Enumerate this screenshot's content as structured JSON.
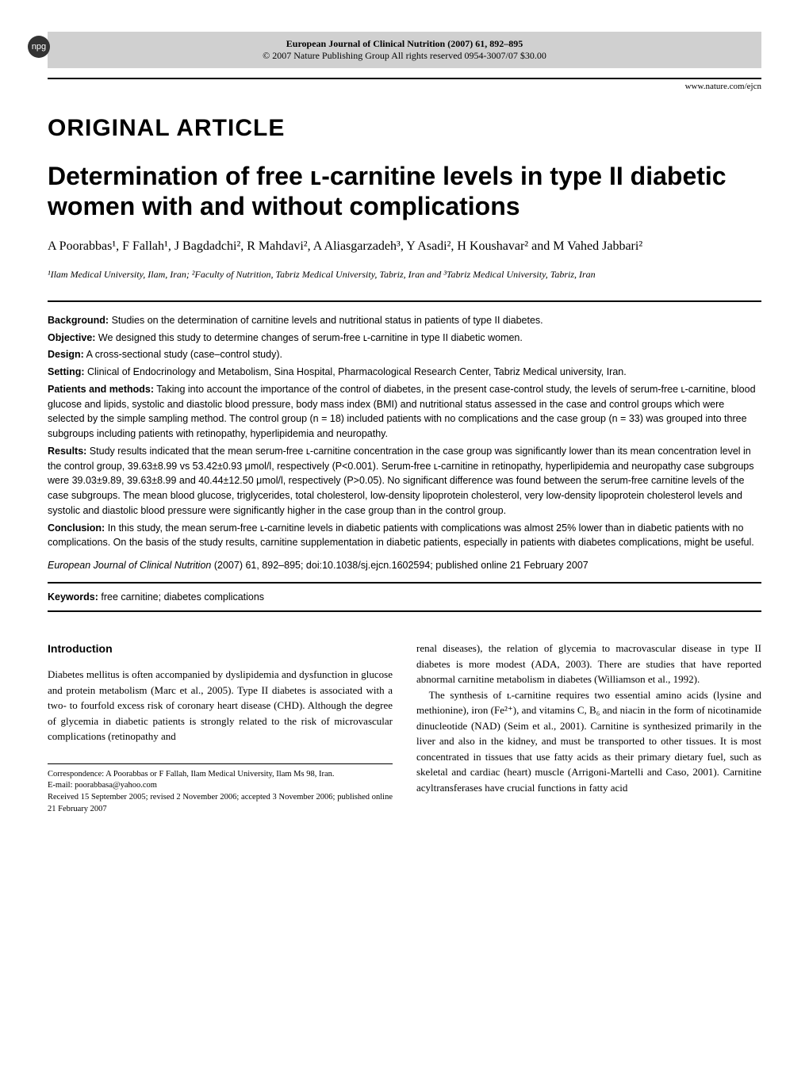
{
  "npg_label": "npg",
  "header": {
    "journal_line": "European Journal of Clinical Nutrition (2007) 61, 892–895",
    "copyright_line": "© 2007 Nature Publishing Group   All rights reserved   0954-3007/07   $30.00",
    "url": "www.nature.com/ejcn"
  },
  "article_type": "ORIGINAL ARTICLE",
  "title": "Determination of free ʟ-carnitine levels in type II diabetic women with and without complications",
  "authors": "A Poorabbas¹, F Fallah¹, J Bagdadchi², R Mahdavi², A Aliasgarzadeh³, Y Asadi², H Koushavar² and M Vahed Jabbari²",
  "affiliations": "¹Ilam Medical University, Ilam, Iran; ²Faculty of Nutrition, Tabriz Medical University, Tabriz, Iran and ³Tabriz Medical University, Tabriz, Iran",
  "abstract": {
    "background": {
      "label": "Background:",
      "text": " Studies on the determination of carnitine levels and nutritional status in patients of type II diabetes."
    },
    "objective": {
      "label": "Objective:",
      "text": " We designed this study to determine changes of serum-free ʟ-carnitine in type II diabetic women."
    },
    "design": {
      "label": "Design:",
      "text": " A cross-sectional study (case–control study)."
    },
    "setting": {
      "label": "Setting:",
      "text": " Clinical of Endocrinology and Metabolism, Sina Hospital, Pharmacological Research Center, Tabriz Medical university, Iran."
    },
    "patients": {
      "label": "Patients and methods:",
      "text": " Taking into account the importance of the control of diabetes, in the present case-control study, the levels of serum-free ʟ-carnitine, blood glucose and lipids, systolic and diastolic blood pressure, body mass index (BMI) and nutritional status assessed in the case and control groups which were selected by the simple sampling method. The control group (n = 18) included patients with no complications and the case group (n = 33) was grouped into three subgroups including patients with retinopathy, hyperlipidemia and neuropathy."
    },
    "results": {
      "label": "Results:",
      "text": " Study results indicated that the mean serum-free ʟ-carnitine concentration in the case group was significantly lower than its mean concentration level in the control group, 39.63±8.99 vs 53.42±0.93 μmol/l, respectively (P<0.001). Serum-free ʟ-carnitine in retinopathy, hyperlipidemia and neuropathy case subgroups were 39.03±9.89, 39.63±8.99 and 40.44±12.50 μmol/l, respectively (P>0.05). No significant difference was found between the serum-free carnitine levels of the case subgroups. The mean blood glucose, triglycerides, total cholesterol, low-density lipoprotein cholesterol, very low-density lipoprotein cholesterol levels and systolic and diastolic blood pressure were significantly higher in the case group than in the control group."
    },
    "conclusion": {
      "label": "Conclusion:",
      "text": " In this study, the mean serum-free ʟ-carnitine levels in diabetic patients with complications was almost 25% lower than in diabetic patients with no complications. On the basis of the study results, carnitine supplementation in diabetic patients, especially in patients with diabetes complications, might be useful."
    }
  },
  "citation": {
    "journal": "European Journal of Clinical Nutrition",
    "rest": " (2007) 61, 892–895; doi:10.1038/sj.ejcn.1602594; published online 21 February 2007"
  },
  "keywords": {
    "label": "Keywords:",
    "text": "   free carnitine; diabetes complications"
  },
  "body": {
    "heading": "Introduction",
    "col1_p1": "Diabetes mellitus is often accompanied by dyslipidemia and dysfunction in glucose and protein metabolism (Marc et al., 2005). Type II diabetes is associated with a two- to fourfold excess risk of coronary heart disease (CHD). Although the degree of glycemia in diabetic patients is strongly related to the risk of microvascular complications (retinopathy and",
    "col2_p1": "renal diseases), the relation of glycemia to macrovascular disease in type II diabetes is more modest (ADA, 2003). There are studies that have reported abnormal carnitine metabolism in diabetes (Williamson et al., 1992).",
    "col2_p2": "The synthesis of ʟ-carnitine requires two essential amino acids (lysine and methionine), iron (Fe²⁺), and vitamins C, B₆ and niacin in the form of nicotinamide dinucleotide (NAD) (Seim et al., 2001). Carnitine is synthesized primarily in the liver and also in the kidney, and must be transported to other tissues. It is most concentrated in tissues that use fatty acids as their primary dietary fuel, such as skeletal and cardiac (heart) muscle (Arrigoni-Martelli and Caso, 2001). Carnitine acyltransferases have crucial functions in fatty acid"
  },
  "footnotes": {
    "correspondence": "Correspondence: A Poorabbas or F Fallah, Ilam Medical University, Ilam Ms 98, Iran.",
    "email": "E-mail: poorabbasa@yahoo.com",
    "received": "Received 15 September 2005; revised 2 November 2006; accepted 3 November 2006; published online 21 February 2007"
  }
}
